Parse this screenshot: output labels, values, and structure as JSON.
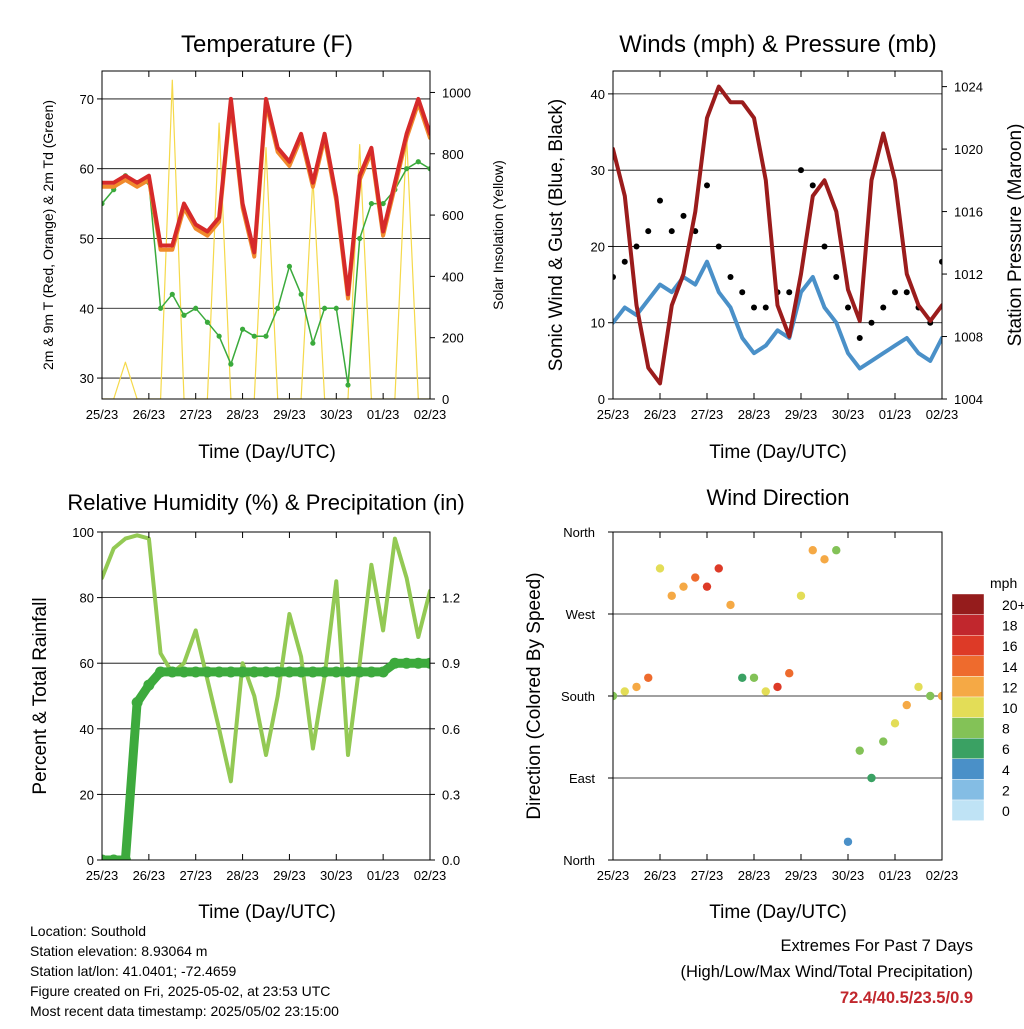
{
  "x_ticks": [
    "25/23",
    "26/23",
    "27/23",
    "28/23",
    "29/23",
    "30/23",
    "01/23",
    "02/23"
  ],
  "colors": {
    "temp2m": "#d62a2a",
    "temp9m": "#f08a2c",
    "dew": "#3aaa3c",
    "solar": "#f5d94a",
    "wind": "#4a90c8",
    "gust": "#000000",
    "pressure": "#9b1c1c",
    "rh": "#93c954",
    "precip": "#3daa3d",
    "extremes": "#c1272d"
  },
  "info": {
    "location": "Location: Southold",
    "elevation": "Station elevation: 8.93064 m",
    "latlon": "Station lat/lon: 41.0401; -72.4659",
    "created": "Figure created on Fri, 2025-05-02, at 23:53 UTC",
    "recent": "Most recent data timestamp: 2025/05/02 23:15:00"
  },
  "extremes": {
    "title": "Extremes For Past 7 Days",
    "subtitle": "(High/Low/Max Wind/Total Precipitation)",
    "values": "72.4/40.5/23.5/0.9"
  },
  "chart_data": [
    {
      "type": "line",
      "title": "Temperature (F)",
      "xlabel": "Time (Day/UTC)",
      "ylabel": "2m & 9m T (Red, Orange) & 2m Td (Green)",
      "ylabel_right": "Solar Insolation (Yellow)",
      "ylim": [
        27,
        74
      ],
      "yticks": [
        30,
        40,
        50,
        60,
        70
      ],
      "ylim_right": [
        0,
        1070
      ],
      "yticks_right": [
        0,
        200,
        400,
        600,
        800,
        1000
      ],
      "x": [
        0,
        0.25,
        0.5,
        0.75,
        1,
        1.25,
        1.5,
        1.75,
        2,
        2.25,
        2.5,
        2.75,
        3,
        3.25,
        3.5,
        3.75,
        4,
        4.25,
        4.5,
        4.75,
        5,
        5.25,
        5.5,
        5.75,
        6,
        6.25,
        6.5,
        6.75,
        7
      ],
      "series": [
        {
          "values": [
            58,
            58,
            59,
            58,
            59,
            49,
            49,
            55,
            52,
            51,
            53,
            70,
            55,
            48,
            70,
            63,
            61,
            65,
            58,
            65,
            56,
            42,
            59,
            63,
            51,
            58,
            65,
            70,
            65
          ]
        },
        {
          "values": [
            55,
            57,
            59,
            58,
            58,
            40,
            42,
            39,
            40,
            38,
            36,
            32,
            37,
            36,
            36,
            40,
            46,
            42,
            35,
            40,
            40,
            29,
            50,
            55,
            55,
            57,
            60,
            61,
            60
          ]
        },
        {
          "values": [
            0,
            0,
            120,
            0,
            0,
            0,
            1040,
            0,
            0,
            0,
            900,
            0,
            0,
            0,
            820,
            0,
            0,
            0,
            720,
            0,
            0,
            0,
            830,
            0,
            0,
            0,
            860,
            0,
            0
          ]
        }
      ],
      "grid": true
    },
    {
      "type": "scatter",
      "title": "Winds (mph) & Pressure (mb)",
      "xlabel": "Time (Day/UTC)",
      "ylabel": "Sonic Wind & Gust (Blue, Black)",
      "ylabel_right": "Station Pressure (Maroon)",
      "ylim": [
        0,
        43
      ],
      "yticks": [
        0,
        10,
        20,
        30,
        40
      ],
      "ylim_right": [
        1004,
        1025
      ],
      "yticks_right": [
        1004,
        1008,
        1012,
        1016,
        1020,
        1024
      ],
      "x": [
        0,
        0.25,
        0.5,
        0.75,
        1,
        1.25,
        1.5,
        1.75,
        2,
        2.25,
        2.5,
        2.75,
        3,
        3.25,
        3.5,
        3.75,
        4,
        4.25,
        4.5,
        4.75,
        5,
        5.25,
        5.5,
        5.75,
        6,
        6.25,
        6.5,
        6.75,
        7
      ],
      "series": [
        {
          "values": [
            10,
            12,
            11,
            13,
            15,
            14,
            16,
            15,
            18,
            14,
            12,
            8,
            6,
            7,
            9,
            8,
            14,
            16,
            12,
            10,
            6,
            4,
            5,
            6,
            7,
            8,
            6,
            5,
            8
          ]
        },
        {
          "values": [
            16,
            18,
            20,
            22,
            26,
            22,
            24,
            22,
            28,
            20,
            16,
            14,
            12,
            12,
            14,
            14,
            30,
            28,
            20,
            16,
            12,
            8,
            10,
            12,
            14,
            14,
            12,
            10,
            18
          ]
        },
        {
          "values": [
            1020,
            1017,
            1010,
            1006,
            1005,
            1010,
            1012,
            1016,
            1022,
            1024,
            1023,
            1023,
            1022,
            1018,
            1010,
            1008,
            1012,
            1017,
            1018,
            1016,
            1011,
            1009,
            1018,
            1021,
            1018,
            1012,
            1010,
            1009,
            1010
          ]
        }
      ],
      "grid": true
    },
    {
      "type": "line",
      "title": "Relative Humidity (%) & Precipitation (in)",
      "xlabel": "Time (Day/UTC)",
      "ylabel": "Percent & Total Rainfall",
      "ylim": [
        0,
        100
      ],
      "yticks": [
        0,
        20,
        40,
        60,
        80,
        100
      ],
      "ylim_right": [
        0,
        1.5
      ],
      "yticks_right": [
        0.0,
        0.3,
        0.6,
        0.9,
        1.2
      ],
      "x": [
        0,
        0.25,
        0.5,
        0.75,
        1,
        1.25,
        1.5,
        1.75,
        2,
        2.25,
        2.5,
        2.75,
        3,
        3.25,
        3.5,
        3.75,
        4,
        4.25,
        4.5,
        4.75,
        5,
        5.25,
        5.5,
        5.75,
        6,
        6.25,
        6.5,
        6.75,
        7
      ],
      "series": [
        {
          "values": [
            86,
            95,
            98,
            99,
            98,
            63,
            57,
            60,
            70,
            55,
            40,
            24,
            60,
            50,
            32,
            50,
            75,
            62,
            34,
            56,
            85,
            32,
            60,
            90,
            70,
            98,
            86,
            68,
            82
          ]
        },
        {
          "values": [
            0.0,
            0.0,
            0.0,
            0.72,
            0.8,
            0.86,
            0.86,
            0.86,
            0.86,
            0.86,
            0.86,
            0.86,
            0.86,
            0.86,
            0.86,
            0.86,
            0.86,
            0.86,
            0.86,
            0.86,
            0.86,
            0.86,
            0.86,
            0.86,
            0.86,
            0.9,
            0.9,
            0.9,
            0.9
          ]
        }
      ],
      "grid": true
    },
    {
      "type": "scatter",
      "title": "Wind Direction",
      "xlabel": "Time (Day/UTC)",
      "ylabel": "Direction (Colored By Speed)",
      "yticks": [
        "North",
        "East",
        "South",
        "West",
        "North"
      ],
      "ylim": [
        0,
        360
      ],
      "x": [
        0,
        0.25,
        0.5,
        0.75,
        1,
        1.25,
        1.5,
        1.75,
        2,
        2.25,
        2.5,
        2.75,
        3,
        3.25,
        3.5,
        3.75,
        4,
        4.25,
        4.5,
        4.75,
        5,
        5.25,
        5.5,
        5.75,
        6,
        6.25,
        6.5,
        6.75,
        7
      ],
      "series": [
        {
          "values": [
            180,
            185,
            190,
            200,
            320,
            290,
            300,
            310,
            300,
            320,
            280,
            200,
            200,
            185,
            190,
            205,
            290,
            340,
            330,
            340,
            20,
            120,
            90,
            130,
            150,
            170,
            190,
            180,
            180
          ]
        },
        {
          "values": [
            8,
            10,
            12,
            14,
            10,
            12,
            12,
            14,
            16,
            16,
            12,
            6,
            8,
            10,
            16,
            14,
            10,
            12,
            12,
            8,
            4,
            8,
            6,
            8,
            10,
            12,
            10,
            8,
            12
          ]
        }
      ],
      "legend": {
        "title": "mph",
        "labels": [
          "20+",
          "18",
          "16",
          "14",
          "12",
          "10",
          "8",
          "6",
          "4",
          "2",
          "0"
        ]
      }
    }
  ]
}
